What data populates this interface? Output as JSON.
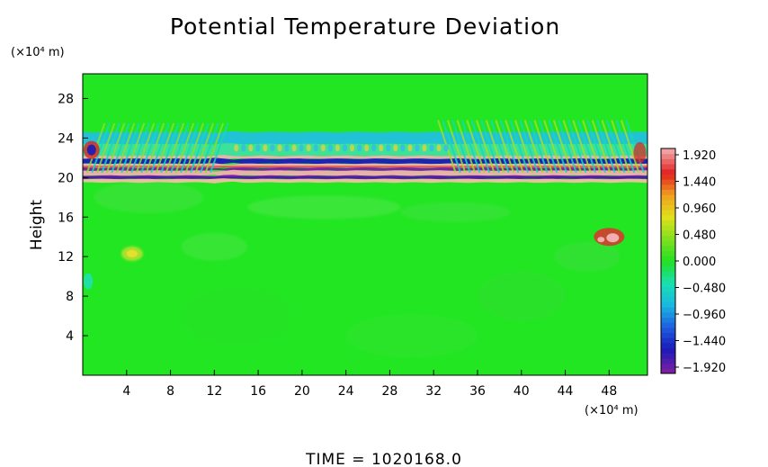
{
  "chart_data": {
    "type": "heatmap",
    "title": "Potential Temperature Deviation",
    "ylabel": "Height",
    "y_unit": "(×10⁴ m)",
    "x_unit": "(×10⁴ m)",
    "xlabel": "",
    "x_ticks": [
      "4",
      "8",
      "12",
      "16",
      "20",
      "24",
      "28",
      "32",
      "36",
      "40",
      "44",
      "48"
    ],
    "y_ticks": [
      "4",
      "8",
      "12",
      "16",
      "20",
      "24",
      "28"
    ],
    "xlim": [
      0,
      51.5
    ],
    "ylim": [
      0,
      30.5
    ],
    "colorbar": {
      "ticks": [
        "1.920",
        "1.440",
        "0.960",
        "0.480",
        "0.000",
        "−0.480",
        "−0.960",
        "−1.440",
        "−1.920"
      ],
      "range": [
        -1.92,
        1.92
      ],
      "colors": [
        "#7a1fa2",
        "#1a1ab8",
        "#1f5fe0",
        "#19b8e0",
        "#19e0b0",
        "#22e022",
        "#7fe01f",
        "#e0e01a",
        "#f0a020",
        "#e02020",
        "#f0a0a0"
      ]
    },
    "features": [
      {
        "name": "inversion band",
        "y_range": [
          19.5,
          25
        ],
        "x_range": [
          0,
          51.5
        ],
        "pattern": "alternating strong positive and negative layers with wave ripples above"
      },
      {
        "name": "warm blob",
        "x": 48,
        "y": 14,
        "value": 1.9
      },
      {
        "name": "weak warm patch",
        "x": 4.5,
        "y": 12.3,
        "value": 0.7
      },
      {
        "name": "cool patch",
        "x": 0.5,
        "y": 9.5,
        "value": -0.4
      }
    ],
    "grid": false
  },
  "footer": {
    "time_label": "TIME  =  1020168.0"
  }
}
